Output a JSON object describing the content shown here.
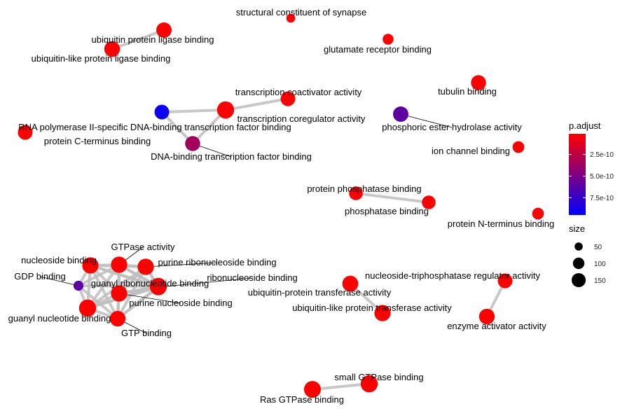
{
  "network": {
    "nodes": [
      {
        "id": "ubp",
        "label": "ubiquitin protein ligase binding",
        "padj": 1e-11,
        "size": 120
      },
      {
        "id": "ublp",
        "label": "ubiquitin-like protein ligase binding",
        "padj": 1e-11,
        "size": 125
      },
      {
        "id": "scs",
        "label": "structural constituent of synapse",
        "padj": 1e-11,
        "size": 40
      },
      {
        "id": "grb",
        "label": "glutamate receptor binding",
        "padj": 1e-11,
        "size": 60
      },
      {
        "id": "tca",
        "label": "transcription coactivator activity",
        "padj": 1e-11,
        "size": 110
      },
      {
        "id": "tcra",
        "label": "transcription coregulator activity",
        "padj": 1e-11,
        "size": 150
      },
      {
        "id": "rnap",
        "label": "RNA polymerase II-specific DNA-binding transcription factor binding",
        "padj": 9e-10,
        "size": 110
      },
      {
        "id": "pct",
        "label": "protein C-terminus binding",
        "padj": 1e-11,
        "size": 110
      },
      {
        "id": "dtfb",
        "label": "DNA-binding transcription factor binding",
        "padj": 3.5e-10,
        "size": 115
      },
      {
        "id": "tub",
        "label": "tubulin binding",
        "padj": 1e-11,
        "size": 115
      },
      {
        "id": "peha",
        "label": "phosphoric ester hydrolase activity",
        "padj": 6e-10,
        "size": 120
      },
      {
        "id": "icb",
        "label": "ion channel binding",
        "padj": 1e-11,
        "size": 70
      },
      {
        "id": "ppb",
        "label": "protein phosphatase binding",
        "padj": 1e-11,
        "size": 95
      },
      {
        "id": "phb",
        "label": "phosphatase binding",
        "padj": 1e-11,
        "size": 95
      },
      {
        "id": "pnt",
        "label": "protein N-terminus binding",
        "padj": 1e-11,
        "size": 70
      },
      {
        "id": "nsb",
        "label": "nucleoside binding",
        "padj": 1e-11,
        "size": 135
      },
      {
        "id": "gtpa",
        "label": "GTPase activity",
        "padj": 1e-11,
        "size": 135
      },
      {
        "id": "prnb",
        "label": "purine ribonucleoside binding",
        "padj": 1e-11,
        "size": 135
      },
      {
        "id": "gdp",
        "label": "GDP binding",
        "padj": 6e-10,
        "size": 50
      },
      {
        "id": "grnb",
        "label": "guanyl ribonucleotide binding",
        "padj": 1e-11,
        "size": 150
      },
      {
        "id": "rnb",
        "label": "ribonucleoside binding",
        "padj": 1e-11,
        "size": 135
      },
      {
        "id": "pnb",
        "label": "purine nucleoside binding",
        "padj": 1e-11,
        "size": 135
      },
      {
        "id": "gnb",
        "label": "guanyl nucleotide binding",
        "padj": 1e-11,
        "size": 150
      },
      {
        "id": "gtpb",
        "label": "GTP binding",
        "padj": 1e-11,
        "size": 125
      },
      {
        "id": "ntpra",
        "label": "nucleoside-triphosphatase regulator activity",
        "padj": 1e-11,
        "size": 110
      },
      {
        "id": "uptf",
        "label": "ubiquitin-protein transferase activity",
        "padj": 1e-11,
        "size": 130
      },
      {
        "id": "ulptf",
        "label": "ubiquitin-like protein transferase activity",
        "padj": 1e-11,
        "size": 135
      },
      {
        "id": "eaa",
        "label": "enzyme activator activity",
        "padj": 1e-11,
        "size": 125
      },
      {
        "id": "sgtp",
        "label": "small GTPase binding",
        "padj": 1e-11,
        "size": 150
      },
      {
        "id": "rgtp",
        "label": "Ras GTPase binding",
        "padj": 1e-11,
        "size": 145
      }
    ],
    "edges": [
      [
        "ubp",
        "ublp"
      ],
      [
        "tca",
        "tcra"
      ],
      [
        "tcra",
        "rnap"
      ],
      [
        "rnap",
        "dtfb"
      ],
      [
        "dtfb",
        "tcra"
      ],
      [
        "ppb",
        "phb"
      ],
      [
        "ntpra",
        "eaa"
      ],
      [
        "uptf",
        "ulptf"
      ],
      [
        "sgtp",
        "rgtp"
      ],
      [
        "nsb",
        "gtpa"
      ],
      [
        "nsb",
        "prnb"
      ],
      [
        "nsb",
        "grnb"
      ],
      [
        "nsb",
        "rnb"
      ],
      [
        "nsb",
        "pnb"
      ],
      [
        "nsb",
        "gnb"
      ],
      [
        "nsb",
        "gtpb"
      ],
      [
        "nsb",
        "gdp"
      ],
      [
        "gtpa",
        "prnb"
      ],
      [
        "gtpa",
        "grnb"
      ],
      [
        "gtpa",
        "rnb"
      ],
      [
        "gtpa",
        "pnb"
      ],
      [
        "gtpa",
        "gnb"
      ],
      [
        "gtpa",
        "gtpb"
      ],
      [
        "gtpa",
        "gdp"
      ],
      [
        "prnb",
        "grnb"
      ],
      [
        "prnb",
        "rnb"
      ],
      [
        "prnb",
        "pnb"
      ],
      [
        "prnb",
        "gnb"
      ],
      [
        "prnb",
        "gtpb"
      ],
      [
        "grnb",
        "rnb"
      ],
      [
        "grnb",
        "pnb"
      ],
      [
        "grnb",
        "gnb"
      ],
      [
        "grnb",
        "gtpb"
      ],
      [
        "grnb",
        "gdp"
      ],
      [
        "rnb",
        "pnb"
      ],
      [
        "rnb",
        "gnb"
      ],
      [
        "rnb",
        "gtpb"
      ],
      [
        "pnb",
        "gnb"
      ],
      [
        "pnb",
        "gtpb"
      ],
      [
        "gnb",
        "gtpb"
      ],
      [
        "gnb",
        "gdp"
      ],
      [
        "gtpb",
        "gdp"
      ]
    ]
  },
  "legend": {
    "color_title": "p.adjust",
    "color_ticks": [
      "2.5e-10",
      "5.0e-10",
      "7.5e-10"
    ],
    "color_tick_values": [
      2.5e-10,
      5e-10,
      7.5e-10
    ],
    "color_range": [
      1e-11,
      9.5e-10
    ],
    "low_color": "#ff0000",
    "high_color": "#0000ff",
    "size_title": "size",
    "size_items": [
      {
        "label": "50",
        "value": 50
      },
      {
        "label": "100",
        "value": 100
      },
      {
        "label": "150",
        "value": 150
      }
    ]
  },
  "style": {
    "edge_color": "#bebebe"
  }
}
